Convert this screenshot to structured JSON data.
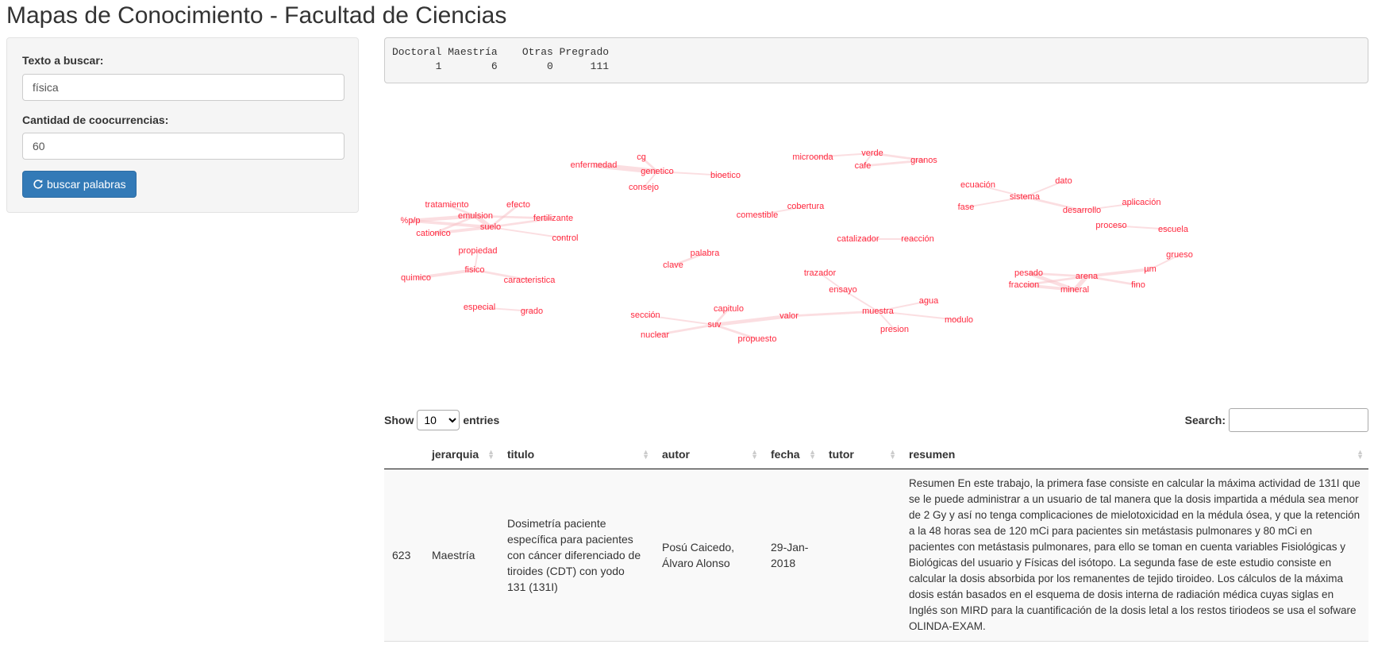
{
  "page": {
    "title": "Mapas de Conocimiento - Facultad de Ciencias"
  },
  "sidebar": {
    "search_label": "Texto a buscar:",
    "search_value": "física",
    "count_label": "Cantidad de coocurrencias:",
    "count_value": "60",
    "button_label": "buscar palabras",
    "button_icon": "refresh-icon"
  },
  "summary": {
    "text": "Doctoral Maestría    Otras Pregrado\n       1        6        0      111"
  },
  "network": {
    "color": "#ff2a40",
    "nodes": [
      {
        "id": "enfermedad",
        "label": "enfermedad"
      },
      {
        "id": "cg",
        "label": "cg"
      },
      {
        "id": "genetico",
        "label": "genetico"
      },
      {
        "id": "bioetico",
        "label": "bioetico"
      },
      {
        "id": "consejo",
        "label": "consejo"
      },
      {
        "id": "microonda",
        "label": "microonda"
      },
      {
        "id": "verde",
        "label": "verde"
      },
      {
        "id": "granos",
        "label": "granos"
      },
      {
        "id": "cafe",
        "label": "cafe"
      },
      {
        "id": "ecuacion",
        "label": "ecuación"
      },
      {
        "id": "dato",
        "label": "dato"
      },
      {
        "id": "sistema",
        "label": "sistema"
      },
      {
        "id": "fase",
        "label": "fase"
      },
      {
        "id": "aplicacion",
        "label": "aplicación"
      },
      {
        "id": "desarrollo",
        "label": "desarrollo"
      },
      {
        "id": "proceso",
        "label": "proceso"
      },
      {
        "id": "escuela",
        "label": "escuela"
      },
      {
        "id": "tratamiento",
        "label": "tratamiento"
      },
      {
        "id": "efecto",
        "label": "efecto"
      },
      {
        "id": "pp",
        "label": "%p/p"
      },
      {
        "id": "emulsion",
        "label": "emulsion"
      },
      {
        "id": "fertilizante",
        "label": "fertilizante"
      },
      {
        "id": "suelo",
        "label": "suelo"
      },
      {
        "id": "cationico",
        "label": "cationico"
      },
      {
        "id": "control",
        "label": "control"
      },
      {
        "id": "comestible",
        "label": "comestible"
      },
      {
        "id": "cobertura",
        "label": "cobertura"
      },
      {
        "id": "catalizador",
        "label": "catalizador"
      },
      {
        "id": "reaccion",
        "label": "reacción"
      },
      {
        "id": "propiedad",
        "label": "propiedad"
      },
      {
        "id": "palabra",
        "label": "palabra"
      },
      {
        "id": "clave",
        "label": "clave"
      },
      {
        "id": "grueso",
        "label": "grueso"
      },
      {
        "id": "um",
        "label": "µm"
      },
      {
        "id": "quimico",
        "label": "quimico"
      },
      {
        "id": "fisico",
        "label": "fisico"
      },
      {
        "id": "caracteristica",
        "label": "caracteristica"
      },
      {
        "id": "trazador",
        "label": "trazador"
      },
      {
        "id": "pesado",
        "label": "pesado"
      },
      {
        "id": "arena",
        "label": "arena"
      },
      {
        "id": "fraccion",
        "label": "fraccion"
      },
      {
        "id": "mineral",
        "label": "mineral"
      },
      {
        "id": "fino",
        "label": "fino"
      },
      {
        "id": "ensayo",
        "label": "ensayo"
      },
      {
        "id": "agua",
        "label": "agua"
      },
      {
        "id": "especial",
        "label": "especial"
      },
      {
        "id": "grado",
        "label": "grado"
      },
      {
        "id": "capitulo",
        "label": "capitulo"
      },
      {
        "id": "seccion",
        "label": "sección"
      },
      {
        "id": "valor",
        "label": "valor"
      },
      {
        "id": "muestra",
        "label": "muestra"
      },
      {
        "id": "suv",
        "label": "suv"
      },
      {
        "id": "modulo",
        "label": "modulo"
      },
      {
        "id": "presion",
        "label": "presion"
      },
      {
        "id": "nuclear",
        "label": "nuclear"
      },
      {
        "id": "propuesto",
        "label": "propuesto"
      }
    ],
    "edges": [
      [
        "enfermedad",
        "genetico",
        6
      ],
      [
        "cg",
        "genetico",
        2
      ],
      [
        "genetico",
        "bioetico",
        1
      ],
      [
        "genetico",
        "consejo",
        1
      ],
      [
        "microonda",
        "verde",
        1
      ],
      [
        "verde",
        "granos",
        2
      ],
      [
        "cafe",
        "granos",
        2
      ],
      [
        "verde",
        "cafe",
        1
      ],
      [
        "ecuacion",
        "sistema",
        1
      ],
      [
        "dato",
        "sistema",
        1
      ],
      [
        "fase",
        "sistema",
        1
      ],
      [
        "sistema",
        "desarrollo",
        2
      ],
      [
        "desarrollo",
        "aplicacion",
        1
      ],
      [
        "proceso",
        "escuela",
        1
      ],
      [
        "tratamiento",
        "emulsion",
        2
      ],
      [
        "efecto",
        "suelo",
        2
      ],
      [
        "pp",
        "emulsion",
        4
      ],
      [
        "pp",
        "suelo",
        3
      ],
      [
        "emulsion",
        "suelo",
        5
      ],
      [
        "emulsion",
        "fertilizante",
        2
      ],
      [
        "suelo",
        "fertilizante",
        2
      ],
      [
        "cationico",
        "suelo",
        3
      ],
      [
        "cationico",
        "emulsion",
        2
      ],
      [
        "suelo",
        "control",
        1
      ],
      [
        "propiedad",
        "fisico",
        1
      ],
      [
        "comestible",
        "cobertura",
        1
      ],
      [
        "catalizador",
        "reaccion",
        1
      ],
      [
        "palabra",
        "clave",
        2
      ],
      [
        "quimico",
        "fisico",
        3
      ],
      [
        "fisico",
        "caracteristica",
        2
      ],
      [
        "especial",
        "grado",
        1
      ],
      [
        "grueso",
        "um",
        1
      ],
      [
        "um",
        "arena",
        3
      ],
      [
        "pesado",
        "mineral",
        4
      ],
      [
        "arena",
        "mineral",
        5
      ],
      [
        "fraccion",
        "mineral",
        3
      ],
      [
        "arena",
        "fino",
        2
      ],
      [
        "pesado",
        "arena",
        2
      ],
      [
        "fraccion",
        "arena",
        2
      ],
      [
        "trazador",
        "ensayo",
        1
      ],
      [
        "ensayo",
        "muestra",
        1
      ],
      [
        "capitulo",
        "suv",
        2
      ],
      [
        "seccion",
        "suv",
        1
      ],
      [
        "suv",
        "valor",
        4
      ],
      [
        "valor",
        "muestra",
        2
      ],
      [
        "muestra",
        "agua",
        1
      ],
      [
        "muestra",
        "modulo",
        1
      ],
      [
        "muestra",
        "presion",
        1
      ],
      [
        "suv",
        "nuclear",
        2
      ],
      [
        "suv",
        "propuesto",
        2
      ]
    ]
  },
  "table": {
    "length_label_before": "Show",
    "length_value": "10",
    "length_label_after": "entries",
    "search_label": "Search:",
    "columns": [
      "",
      "jerarquia",
      "titulo",
      "autor",
      "fecha",
      "tutor",
      "resumen"
    ],
    "rows": [
      {
        "id": "623",
        "jerarquia": "Maestría",
        "titulo": "Dosimetría paciente específica para pacientes con cáncer diferenciado de tiroides (CDT) con yodo 131 (131I)",
        "autor": "Posú Caicedo, Álvaro Alonso",
        "fecha": "29-Jan-2018",
        "tutor": "",
        "resumen": "Resumen En este trabajo, la primera fase consiste en calcular la máxima actividad de 131I que se le puede administrar a un usuario de tal manera que la dosis impartida a médula sea menor de 2 Gy y así no tenga complicaciones de mielotoxicidad en la médula ósea, y que la retención a la 48 horas sea de 120 mCi para pacientes sin metástasis pulmonares y 80 mCi en pacientes con metástasis pulmonares, para ello se toman en cuenta variables Fisiológicas y Biológicas del usuario y Físicas del isótopo. La segunda fase de este estudio consiste en calcular la dosis absorbida por los remanentes de tejido tiroideo. Los cálculos de la máxima dosis están basados en el esquema de dosis interna de radiación médica cuyas siglas en Inglés son MIRD para la cuantificación de la dosis letal a los restos tiriodeos se usa el sofware OLINDA-EXAM."
      }
    ]
  }
}
